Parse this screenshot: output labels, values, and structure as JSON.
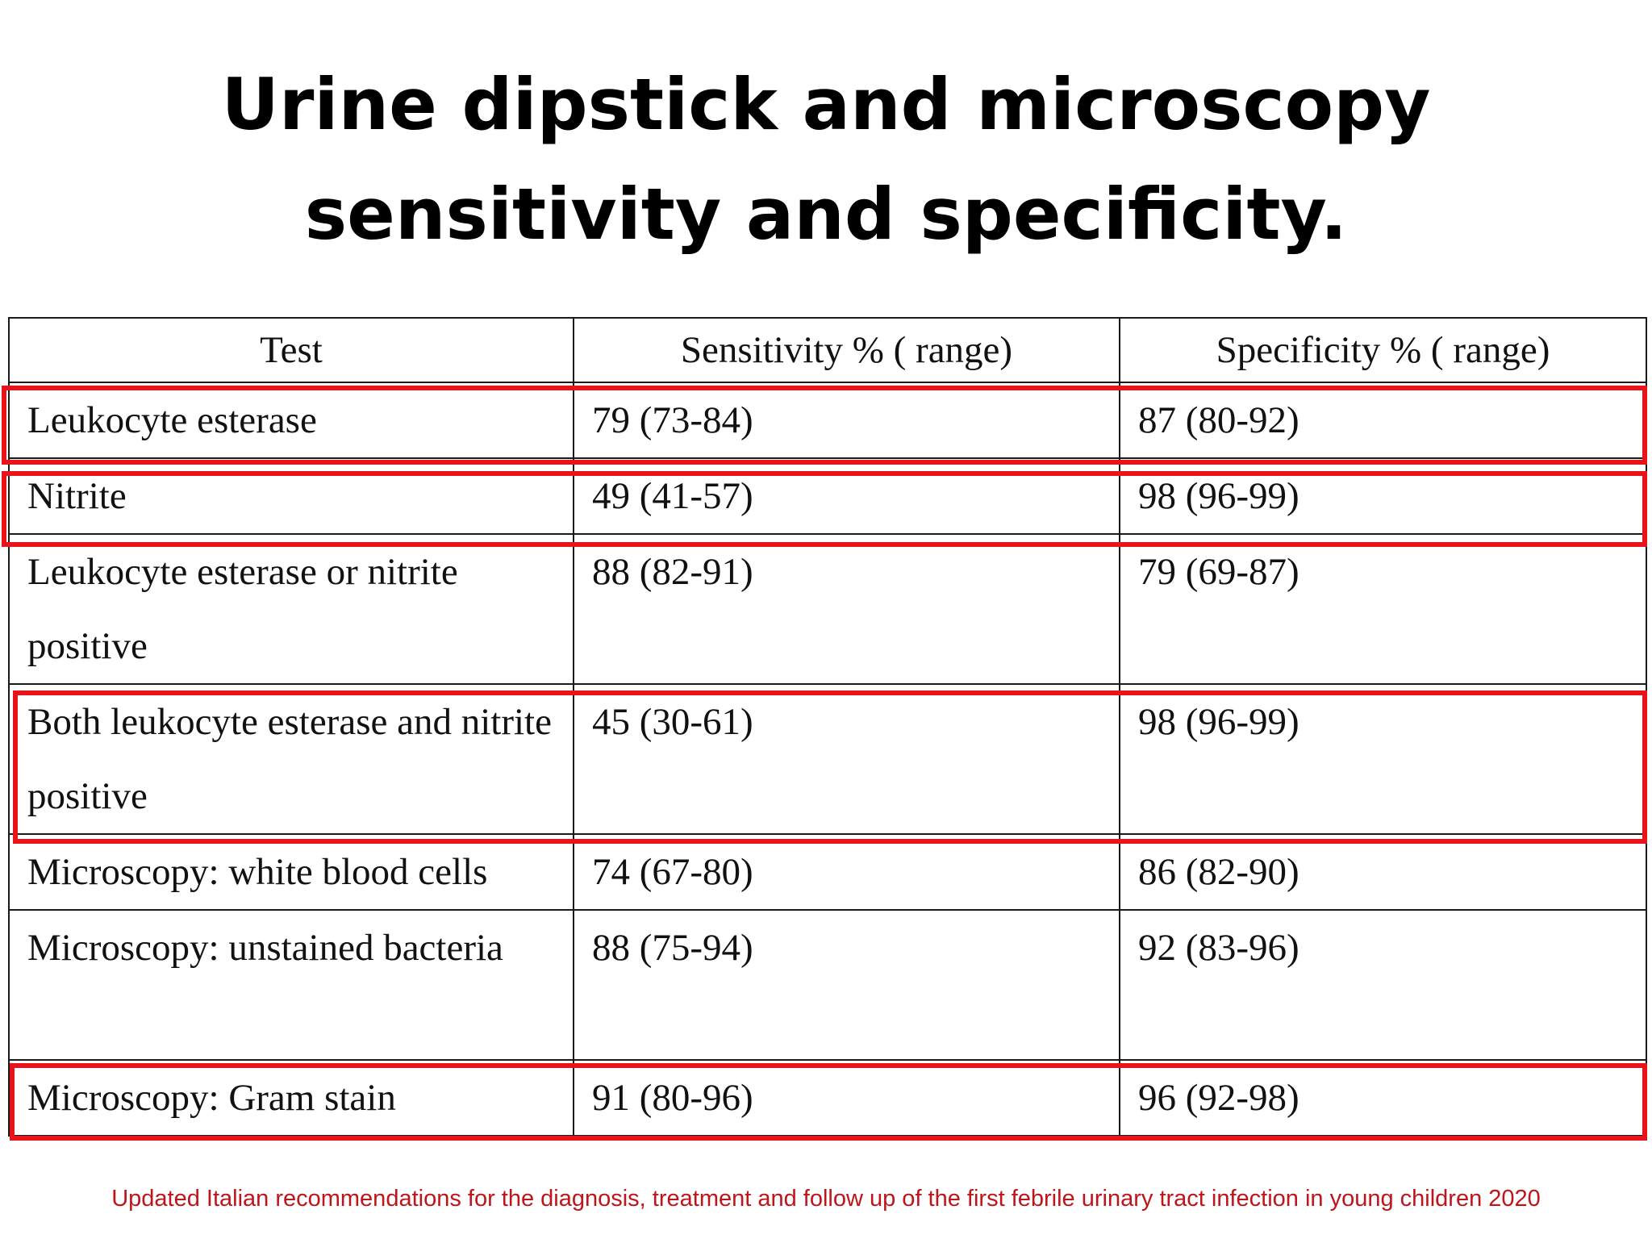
{
  "title": {
    "line1": "Urine dipstick and microscopy",
    "line2": "sensitivity and specificity."
  },
  "table": {
    "headers": [
      "Test",
      "Sensitivity % ( range)",
      "Specificity % ( range)"
    ],
    "rows": [
      {
        "test": "Leukocyte esterase",
        "sensitivity": "79 (73-84)",
        "specificity": "87 (80-92)",
        "highlighted": true
      },
      {
        "test": "Nitrite",
        "sensitivity": "49 (41-57)",
        "specificity": "98 (96-99)",
        "highlighted": true
      },
      {
        "test": "Leukocyte esterase or nitrite positive",
        "sensitivity": "88 (82-91)",
        "specificity": "79 (69-87)",
        "highlighted": false
      },
      {
        "test": "Both leukocyte esterase and nitrite positive",
        "sensitivity": "45 (30-61)",
        "specificity": "98 (96-99)",
        "highlighted": true
      },
      {
        "test": "Microscopy: white blood cells",
        "sensitivity": "74 (67-80)",
        "specificity": "86 (82-90)",
        "highlighted": false
      },
      {
        "test": "Microscopy: unstained bacteria",
        "sensitivity": "88 (75-94)",
        "specificity": "92 (83-96)",
        "highlighted": false
      },
      {
        "test": "Microscopy: Gram stain",
        "sensitivity": "91 (80-96)",
        "specificity": "96 (92-98)",
        "highlighted": true
      }
    ]
  },
  "citation": "Updated Italian recommendations for the diagnosis, treatment and follow up of the first febrile urinary tract infection in young children 2020",
  "colors": {
    "highlight": "#e8141b",
    "citation": "#c0141b"
  }
}
